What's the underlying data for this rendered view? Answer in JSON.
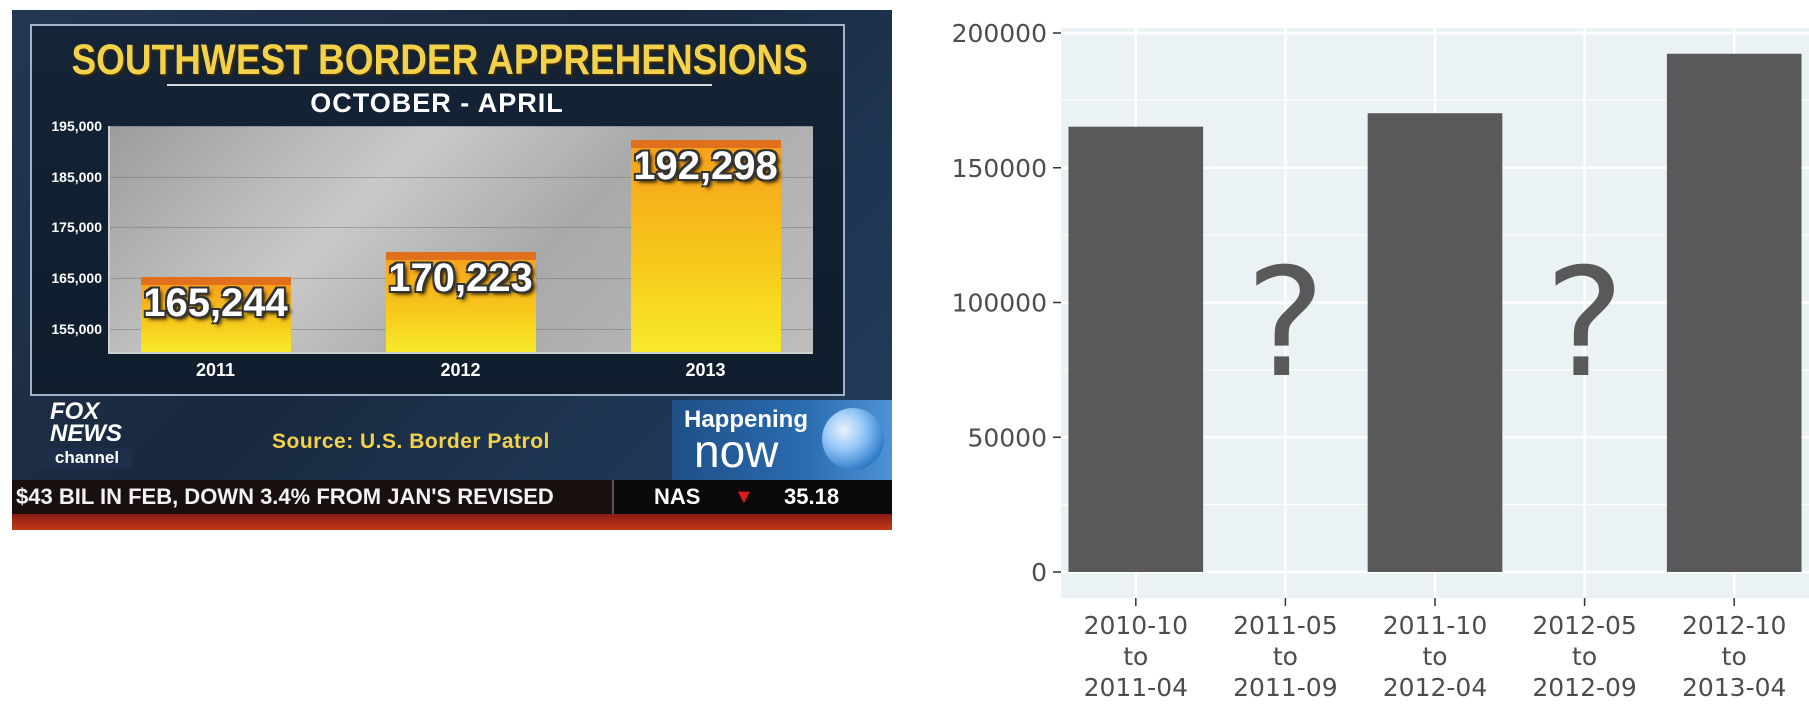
{
  "tv_graphic": {
    "title": "SOUTHWEST BORDER APPREHENSIONS",
    "subtitle": "OCTOBER - APRIL",
    "source": "Source: U.S. Border Patrol",
    "logo": {
      "line1": "FOX",
      "line2": "NEWS",
      "line3": "channel"
    },
    "program": {
      "line1": "Happening",
      "line2": "now"
    },
    "ticker": {
      "text": "$43 BIL IN FEB, DOWN 3.4% FROM JAN'S REVISED",
      "symbol": "NAS",
      "arrow": "▼",
      "value": "35.18"
    },
    "colors": {
      "title": "#f3d24a",
      "bar_top": "#e0701b",
      "bar_fill": "#f7c81b"
    }
  },
  "chart_data": [
    {
      "type": "bar",
      "title": "SOUTHWEST BORDER APPREHENSIONS",
      "subtitle": "OCTOBER - APRIL",
      "categories": [
        "2011",
        "2012",
        "2013"
      ],
      "values": [
        165244,
        170223,
        192298
      ],
      "value_labels": [
        "165,244",
        "170,223",
        "192,298"
      ],
      "ylim": [
        150000,
        195000
      ],
      "yticks": [
        155000,
        165000,
        175000,
        185000,
        195000
      ],
      "ytick_labels": [
        "155,000",
        "165,000",
        "175,000",
        "185,000",
        "195,000"
      ],
      "grid": true
    },
    {
      "type": "bar",
      "categories": [
        "2010-10 to 2011-04",
        "2011-05 to 2011-09",
        "2011-10 to 2012-04",
        "2012-05 to 2012-09",
        "2012-10 to 2013-04"
      ],
      "category_lines": [
        [
          "2010-10",
          "to",
          "2011-04"
        ],
        [
          "2011-05",
          "to",
          "2011-09"
        ],
        [
          "2011-10",
          "to",
          "2012-04"
        ],
        [
          "2012-05",
          "to",
          "2012-09"
        ],
        [
          "2012-10",
          "to",
          "2013-04"
        ]
      ],
      "values": [
        165244,
        null,
        170223,
        null,
        192298
      ],
      "unknown_marker": "?",
      "ylim": [
        0,
        200000
      ],
      "yticks": [
        0,
        50000,
        100000,
        150000,
        200000
      ],
      "ytick_labels": [
        "0",
        "50000",
        "100000",
        "150000",
        "200000"
      ],
      "grid": true,
      "colors": {
        "bar": "#595959",
        "panel": "#ebf2f5",
        "grid": "#ffffff",
        "text": "#4d4d4d"
      }
    }
  ]
}
